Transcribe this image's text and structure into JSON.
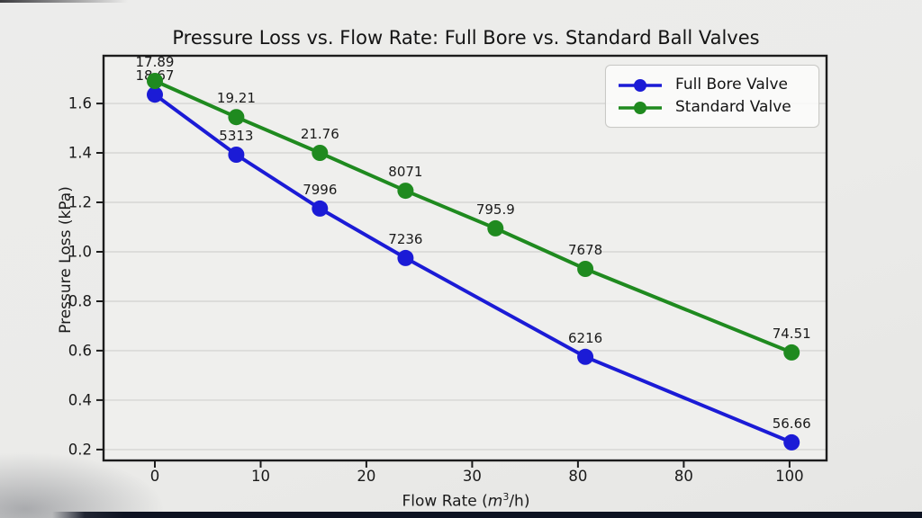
{
  "chart_data": {
    "type": "line",
    "title": "Pressure Loss vs. Flow Rate: Full Bore vs. Standard Ball Valves",
    "xlabel": {
      "pre": "Flow Rate (",
      "var": "m",
      "sup": "3",
      "post": "/h)"
    },
    "ylabel": "Pressure Loss (kPa)",
    "grid": "horizontal",
    "legend_position": "upper right",
    "x_ticks": {
      "units": [
        0,
        10,
        20,
        30,
        40,
        50,
        60
      ],
      "labels": [
        "0",
        "10",
        "20",
        "30",
        "80",
        "80",
        "100"
      ]
    },
    "y_ticks": {
      "values": [
        0.2,
        0.4,
        0.6,
        0.8,
        1.0,
        1.2,
        1.4,
        1.6
      ],
      "labels": [
        "0.2",
        "0.4",
        "0.6",
        "0.8",
        "1.0",
        "1.2",
        "1.4",
        "1.6"
      ]
    },
    "xlim_units": [
      -4.85,
      63.5
    ],
    "ylim": [
      0.156,
      1.793
    ],
    "series": [
      {
        "name": "Full Bore Valve",
        "color": "#1b1bd6",
        "x_units": [
          0,
          7.7,
          15.6,
          23.7,
          40.7,
          60.2
        ],
        "y": [
          1.636,
          1.393,
          1.175,
          0.975,
          0.575,
          0.229
        ],
        "point_labels": [
          "18.67",
          "5313",
          "7996",
          "7236",
          "6216",
          "56.66"
        ]
      },
      {
        "name": "Standard Valve",
        "color": "#1f8a1f",
        "x_units": [
          0,
          7.7,
          15.6,
          23.7,
          32.2,
          40.7,
          60.2
        ],
        "y": [
          1.691,
          1.545,
          1.4,
          1.247,
          1.095,
          0.931,
          0.593
        ],
        "point_labels": [
          "17.89",
          "19.21",
          "21.76",
          "8071",
          "795.9",
          "7678",
          "74.51"
        ]
      }
    ]
  },
  "colors": {
    "spine": "#1c1c1c",
    "grid": "#d6d6d4",
    "tick_text": "#1a1a1a",
    "data_label_text": "#1a1a1a",
    "plot_background": "#efefed"
  }
}
